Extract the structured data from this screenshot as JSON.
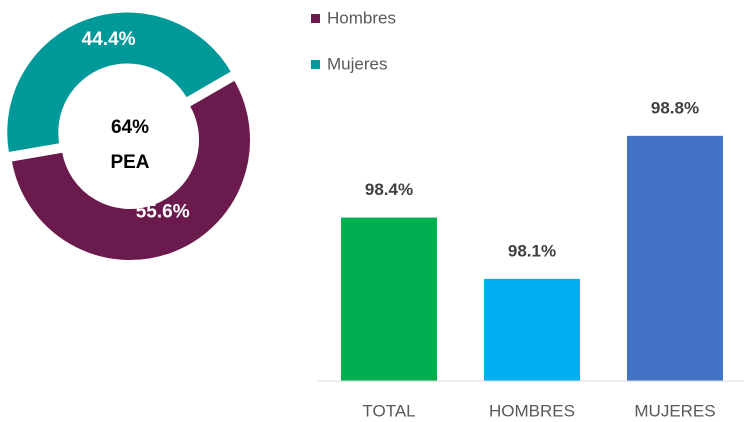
{
  "chart_data": [
    {
      "type": "pie",
      "categories": [
        "Hombres",
        "Mujeres"
      ],
      "values": [
        55.6,
        44.4
      ],
      "value_labels": [
        "55.6%",
        "44.4%"
      ],
      "colors": [
        "#6a1a4c",
        "#00999a"
      ],
      "center_text": [
        "64%",
        "PEA"
      ],
      "legend": "top-right"
    },
    {
      "type": "bar",
      "categories": [
        "TOTAL",
        "HOMBRES",
        "MUJERES"
      ],
      "values": [
        98.4,
        98.1,
        98.8
      ],
      "value_labels": [
        "98.4%",
        "98.1%",
        "98.8%"
      ],
      "colors": [
        "#00b050",
        "#00b0f0",
        "#4472c4"
      ],
      "ylim": [
        97.6,
        99.0
      ]
    }
  ]
}
